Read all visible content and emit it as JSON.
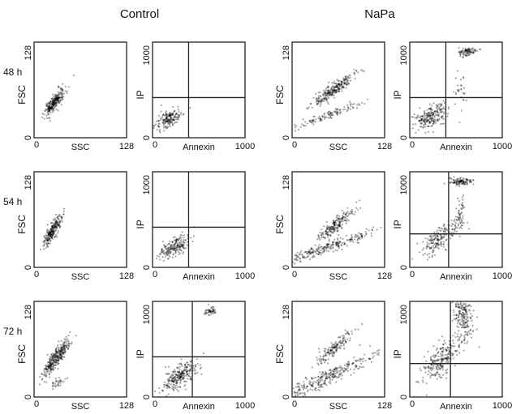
{
  "columns": [
    {
      "title": "Control"
    },
    {
      "title": "NaPa"
    }
  ],
  "rows": [
    {
      "label": "48 h",
      "panels": [
        {
          "y_label": "FSC",
          "x_label": "SSC",
          "y_ticks": [
            "0",
            "128"
          ],
          "x_ticks": [
            "0",
            "128"
          ]
        },
        {
          "y_label": "IP",
          "x_label": "Annexin",
          "y_ticks": [
            "0",
            "1000"
          ],
          "x_ticks": [
            "0",
            "1000"
          ]
        },
        {
          "y_label": "FSC",
          "x_label": "SSC",
          "y_ticks": [
            "0",
            "128"
          ],
          "x_ticks": [
            "0",
            "128"
          ]
        },
        {
          "y_label": "IP",
          "x_label": "Annexin",
          "y_ticks": [
            "0",
            "1000"
          ],
          "x_ticks": [
            "0",
            "1000"
          ]
        }
      ]
    },
    {
      "label": "54 h",
      "panels": [
        {
          "y_label": "FSC",
          "x_label": "SSC",
          "y_ticks": [
            "0",
            "128"
          ],
          "x_ticks": [
            "0",
            "128"
          ]
        },
        {
          "y_label": "IP",
          "x_label": "Annexin",
          "y_ticks": [
            "0",
            "1000"
          ],
          "x_ticks": [
            "0",
            "1000"
          ]
        },
        {
          "y_label": "FSC",
          "x_label": "SSC",
          "y_ticks": [
            "0",
            "128"
          ],
          "x_ticks": [
            "0",
            "128"
          ]
        },
        {
          "y_label": "IP",
          "x_label": "Annexin",
          "y_ticks": [
            "0",
            "1000"
          ],
          "x_ticks": [
            "0",
            "1000"
          ]
        }
      ]
    },
    {
      "label": "72 h",
      "panels": [
        {
          "y_label": "FSC",
          "x_label": "SSC",
          "y_ticks": [
            "0",
            "128"
          ],
          "x_ticks": [
            "0",
            "128"
          ]
        },
        {
          "y_label": "IP",
          "x_label": "Annexin",
          "y_ticks": [
            "0",
            "1000"
          ],
          "x_ticks": [
            "0",
            "1000"
          ]
        },
        {
          "y_label": "FSC",
          "x_label": "SSC",
          "y_ticks": [
            "0",
            "128"
          ],
          "x_ticks": [
            "0",
            "128"
          ]
        },
        {
          "y_label": "IP",
          "x_label": "Annexin",
          "y_ticks": [
            "0",
            "1000"
          ],
          "x_ticks": [
            "0",
            "1000"
          ]
        }
      ]
    }
  ]
}
